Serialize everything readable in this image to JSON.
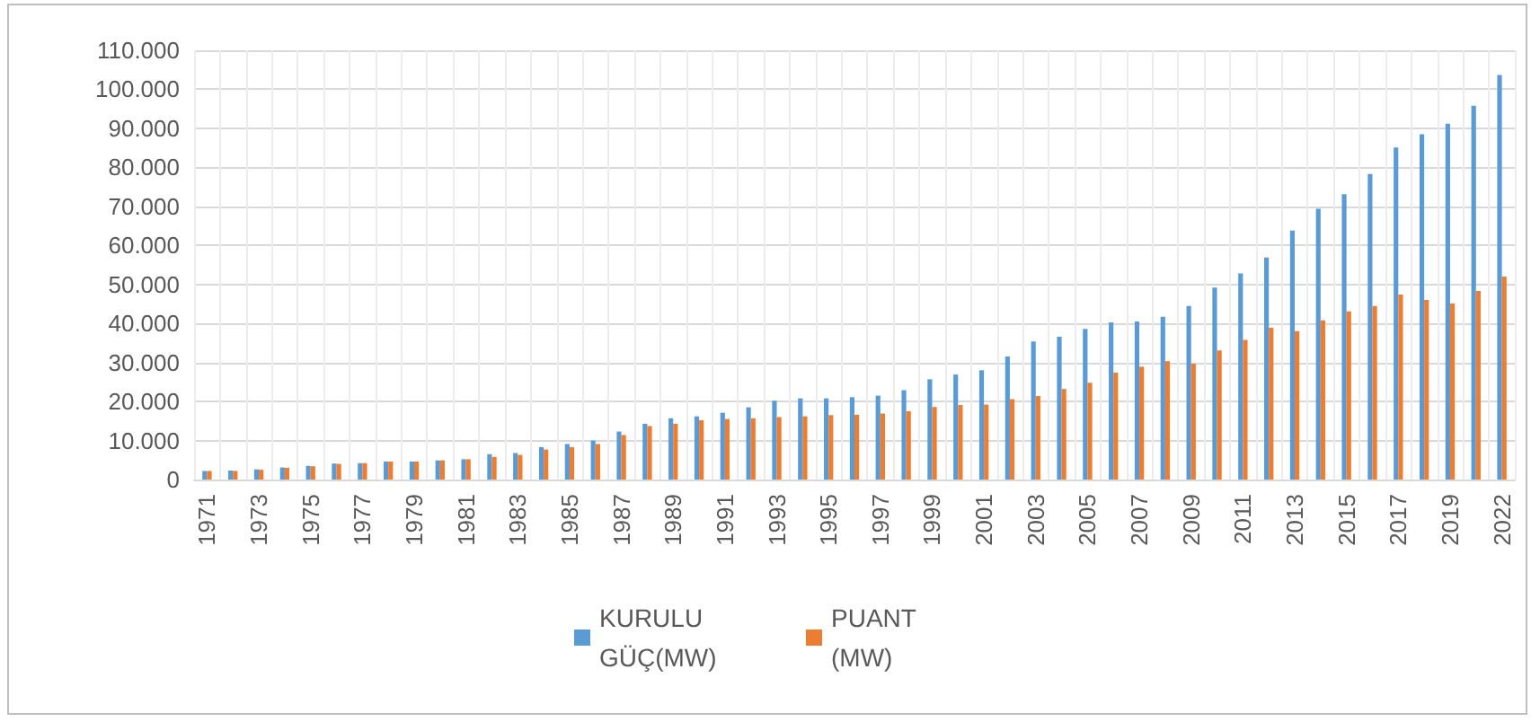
{
  "chart_data": {
    "type": "bar",
    "categories": [
      "1971",
      null,
      "1973",
      null,
      "1975",
      null,
      "1977",
      null,
      "1979",
      null,
      "1981",
      null,
      "1983",
      null,
      "1985",
      null,
      "1987",
      null,
      "1989",
      null,
      "1991",
      null,
      "1993",
      null,
      "1995",
      null,
      "1997",
      null,
      "1999",
      null,
      "2001",
      null,
      "2003",
      null,
      "2005",
      null,
      "2007",
      null,
      "2009",
      null,
      "2011",
      null,
      "2013",
      null,
      "2015",
      null,
      "2017",
      null,
      "2019",
      null,
      "2022"
    ],
    "series": [
      {
        "name": "KURULU GÜÇ(MW)",
        "color": "#5b9bd5",
        "values": [
          2200,
          2300,
          2600,
          3100,
          3500,
          4100,
          4200,
          4600,
          4600,
          4900,
          5200,
          6500,
          6800,
          8300,
          9100,
          10000,
          12300,
          14300,
          15700,
          16200,
          17100,
          18500,
          20200,
          20800,
          20800,
          21100,
          21500,
          22900,
          25700,
          26900,
          28000,
          31500,
          35400,
          36600,
          38600,
          40300,
          40500,
          41700,
          44500,
          49200,
          52800,
          56900,
          63800,
          69400,
          73100,
          78300,
          85100,
          88500,
          91200,
          95800,
          103700
        ]
      },
      {
        "name": "PUANT (MW)",
        "color": "#ed7d31",
        "values": [
          2200,
          2200,
          2500,
          3000,
          3400,
          4000,
          4200,
          4600,
          4600,
          4900,
          5200,
          5800,
          6300,
          7700,
          8300,
          9100,
          11400,
          13700,
          14300,
          15200,
          15500,
          15700,
          16000,
          16200,
          16500,
          16600,
          16900,
          17500,
          18600,
          19100,
          19200,
          20600,
          21400,
          23200,
          24800,
          27400,
          28900,
          30300,
          29700,
          33100,
          35800,
          38900,
          38000,
          40800,
          43100,
          44500,
          47400,
          46000,
          45100,
          48300,
          52000
        ]
      }
    ],
    "ylim": [
      0,
      110000
    ],
    "yticks": [
      {
        "value": 0,
        "label": "0"
      },
      {
        "value": 10000,
        "label": "10.000"
      },
      {
        "value": 20000,
        "label": "20.000"
      },
      {
        "value": 30000,
        "label": "30.000"
      },
      {
        "value": 40000,
        "label": "40.000"
      },
      {
        "value": 50000,
        "label": "50.000"
      },
      {
        "value": 60000,
        "label": "60.000"
      },
      {
        "value": 70000,
        "label": "70.000"
      },
      {
        "value": 80000,
        "label": "80.000"
      },
      {
        "value": 90000,
        "label": "90.000"
      },
      {
        "value": 100000,
        "label": "100.000"
      },
      {
        "value": 110000,
        "label": "110.000"
      }
    ],
    "grid": true,
    "legend": "bottom"
  }
}
